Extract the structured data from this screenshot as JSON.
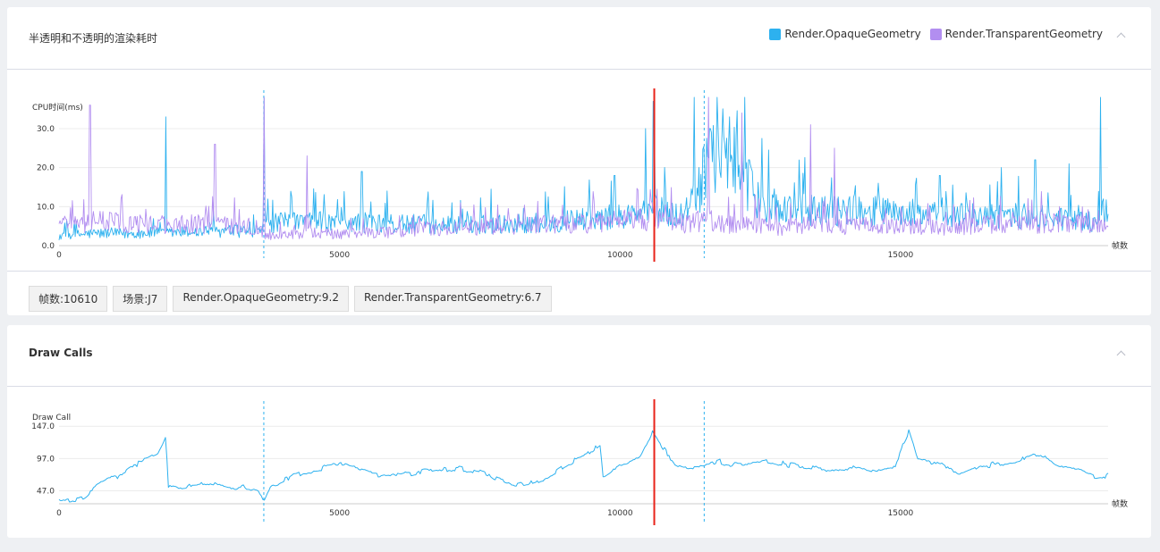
{
  "panel1": {
    "title": "半透明和不透明的渲染耗时",
    "legend": [
      {
        "label": "Render.OpaqueGeometry",
        "color": "#2db1ef"
      },
      {
        "label": "Render.TransparentGeometry",
        "color": "#b28ef0"
      }
    ],
    "chips": [
      "帧数:10610",
      "场景:J7",
      "Render.OpaqueGeometry:9.2",
      "Render.TransparentGeometry:6.7"
    ]
  },
  "panel2": {
    "title": "Draw Calls"
  },
  "chart_data": [
    {
      "type": "line",
      "ylabel": "CPU时间(ms)",
      "xlabel": "帧数",
      "xlim": [
        0,
        18700
      ],
      "ylim": [
        0,
        38
      ],
      "yticks": [
        0,
        10,
        20,
        30
      ],
      "ytick_labels": [
        "0.0",
        "10.0",
        "20.0",
        "30.0"
      ],
      "xticks": [
        0,
        5000,
        10000,
        15000
      ],
      "grid": true,
      "legend_position": "top-right",
      "markers": [
        {
          "x": 10610,
          "kind": "cursor",
          "color": "#e8231a"
        },
        {
          "x": 3650,
          "kind": "scene-boundary",
          "color": "#2db1ef"
        },
        {
          "x": 11500,
          "kind": "scene-boundary",
          "color": "#2db1ef"
        }
      ],
      "series": [
        {
          "name": "Render.OpaqueGeometry",
          "color": "#2db1ef",
          "points": [
            [
              0,
              2.5
            ],
            [
              300,
              2.8
            ],
            [
              600,
              3.1
            ],
            [
              900,
              3.2
            ],
            [
              1200,
              3.0
            ],
            [
              1500,
              3.3
            ],
            [
              1900,
              3.2
            ],
            [
              2300,
              3.5
            ],
            [
              2700,
              3.6
            ],
            [
              3100,
              3.7
            ],
            [
              3500,
              3.8
            ],
            [
              3700,
              5.5
            ],
            [
              4100,
              6.0
            ],
            [
              4500,
              6.2
            ],
            [
              5000,
              5.8
            ],
            [
              5500,
              5.9
            ],
            [
              6000,
              5.5
            ],
            [
              6500,
              5.6
            ],
            [
              7000,
              5.2
            ],
            [
              7500,
              5.4
            ],
            [
              8000,
              5.6
            ],
            [
              8500,
              5.8
            ],
            [
              9000,
              6.2
            ],
            [
              9500,
              7.0
            ],
            [
              9900,
              7.3
            ],
            [
              10300,
              8.0
            ],
            [
              10600,
              9.2
            ],
            [
              10900,
              8.2
            ],
            [
              11200,
              7.6
            ],
            [
              11500,
              18.0
            ],
            [
              11800,
              25.0
            ],
            [
              12100,
              21.0
            ],
            [
              12400,
              12.0
            ],
            [
              12800,
              9.8
            ],
            [
              13200,
              9.2
            ],
            [
              13700,
              9.0
            ],
            [
              14200,
              9.2
            ],
            [
              14700,
              8.6
            ],
            [
              15200,
              8.4
            ],
            [
              15700,
              7.6
            ],
            [
              16200,
              7.8
            ],
            [
              16700,
              7.2
            ],
            [
              17200,
              7.8
            ],
            [
              17700,
              6.9
            ],
            [
              18200,
              6.2
            ],
            [
              18700,
              5.8
            ]
          ],
          "spikes": [
            [
              1900,
              33.0
            ],
            [
              3650,
              38.0
            ],
            [
              4150,
              12.5
            ],
            [
              5400,
              19.0
            ],
            [
              5850,
              14.0
            ],
            [
              7000,
              11.0
            ],
            [
              7700,
              14.5
            ],
            [
              9900,
              18.0
            ],
            [
              10450,
              30.0
            ],
            [
              10600,
              37.0
            ],
            [
              11320,
              38.0
            ],
            [
              11600,
              30.0
            ],
            [
              11950,
              33.0
            ],
            [
              12300,
              22.0
            ],
            [
              14600,
              16.0
            ],
            [
              15700,
              18.0
            ],
            [
              16800,
              20.0
            ],
            [
              17400,
              22.0
            ],
            [
              18000,
              21.0
            ],
            [
              18560,
              40.0
            ]
          ]
        },
        {
          "name": "Render.TransparentGeometry",
          "color": "#b28ef0",
          "points": [
            [
              0,
              5.0
            ],
            [
              300,
              5.6
            ],
            [
              600,
              6.3
            ],
            [
              900,
              6.1
            ],
            [
              1200,
              5.8
            ],
            [
              1500,
              5.6
            ],
            [
              1900,
              5.4
            ],
            [
              2300,
              5.5
            ],
            [
              2700,
              5.4
            ],
            [
              3100,
              5.0
            ],
            [
              3500,
              5.0
            ],
            [
              3700,
              2.4
            ],
            [
              4100,
              2.8
            ],
            [
              4500,
              3.5
            ],
            [
              5000,
              2.9
            ],
            [
              5500,
              3.3
            ],
            [
              6000,
              3.6
            ],
            [
              6500,
              4.3
            ],
            [
              7000,
              4.6
            ],
            [
              7500,
              4.8
            ],
            [
              8000,
              4.9
            ],
            [
              8500,
              5.3
            ],
            [
              9000,
              5.6
            ],
            [
              9500,
              5.6
            ],
            [
              9900,
              6.2
            ],
            [
              10300,
              6.5
            ],
            [
              10600,
              6.7
            ],
            [
              10900,
              6.0
            ],
            [
              11200,
              5.6
            ],
            [
              11500,
              6.5
            ],
            [
              11800,
              5.8
            ],
            [
              12100,
              5.2
            ],
            [
              12400,
              5.4
            ],
            [
              12800,
              4.6
            ],
            [
              13200,
              5.0
            ],
            [
              13700,
              5.4
            ],
            [
              14200,
              4.8
            ],
            [
              14700,
              5.4
            ],
            [
              15200,
              5.0
            ],
            [
              15700,
              4.6
            ],
            [
              16200,
              5.0
            ],
            [
              16700,
              5.6
            ],
            [
              17200,
              5.2
            ],
            [
              17700,
              6.0
            ],
            [
              18200,
              5.6
            ],
            [
              18700,
              4.6
            ]
          ],
          "spikes": [
            [
              550,
              36.0
            ],
            [
              2780,
              26.0
            ],
            [
              3650,
              38.0
            ],
            [
              4420,
              23.0
            ],
            [
              11580,
              40.0
            ],
            [
              12170,
              34.0
            ],
            [
              13400,
              31.0
            ],
            [
              13820,
              25.0
            ]
          ]
        }
      ]
    },
    {
      "type": "line",
      "ylabel": "Draw Call",
      "xlabel": "帧数",
      "xlim": [
        0,
        18700
      ],
      "ylim": [
        27,
        175
      ],
      "yticks": [
        47,
        97,
        147
      ],
      "ytick_labels": [
        "47.0",
        "97.0",
        "147.0"
      ],
      "xticks": [
        0,
        5000,
        10000,
        15000
      ],
      "grid": true,
      "markers": [
        {
          "x": 10610,
          "kind": "cursor",
          "color": "#e8231a"
        },
        {
          "x": 3650,
          "kind": "scene-boundary",
          "color": "#2db1ef"
        },
        {
          "x": 11500,
          "kind": "scene-boundary",
          "color": "#2db1ef"
        }
      ],
      "series": [
        {
          "name": "Draw Call",
          "color": "#2db1ef",
          "points": [
            [
              0,
              33
            ],
            [
              350,
              33
            ],
            [
              500,
              42
            ],
            [
              800,
              60
            ],
            [
              1100,
              72
            ],
            [
              1400,
              88
            ],
            [
              1650,
              100
            ],
            [
              1800,
              108
            ],
            [
              1900,
              128
            ],
            [
              1950,
              55
            ],
            [
              2300,
              54
            ],
            [
              2700,
              60
            ],
            [
              3000,
              55
            ],
            [
              3300,
              52
            ],
            [
              3550,
              48
            ],
            [
              3650,
              32
            ],
            [
              3750,
              50
            ],
            [
              4200,
              72
            ],
            [
              4700,
              82
            ],
            [
              5100,
              92
            ],
            [
              5400,
              78
            ],
            [
              5700,
              70
            ],
            [
              6200,
              72
            ],
            [
              6700,
              80
            ],
            [
              7100,
              83
            ],
            [
              7500,
              75
            ],
            [
              7900,
              62
            ],
            [
              8300,
              55
            ],
            [
              8700,
              68
            ],
            [
              9000,
              85
            ],
            [
              9300,
              100
            ],
            [
              9650,
              120
            ],
            [
              9700,
              65
            ],
            [
              10000,
              88
            ],
            [
              10350,
              100
            ],
            [
              10600,
              140
            ],
            [
              10800,
              110
            ],
            [
              11000,
              88
            ],
            [
              11400,
              84
            ],
            [
              11800,
              92
            ],
            [
              12200,
              86
            ],
            [
              12600,
              94
            ],
            [
              13000,
              87
            ],
            [
              13400,
              84
            ],
            [
              13800,
              80
            ],
            [
              14200,
              82
            ],
            [
              14600,
              80
            ],
            [
              14900,
              85
            ],
            [
              15150,
              140
            ],
            [
              15300,
              95
            ],
            [
              15700,
              88
            ],
            [
              16100,
              72
            ],
            [
              16400,
              84
            ],
            [
              16700,
              88
            ],
            [
              17100,
              96
            ],
            [
              17500,
              106
            ],
            [
              17800,
              84
            ],
            [
              18200,
              78
            ],
            [
              18500,
              66
            ],
            [
              18700,
              70
            ]
          ]
        }
      ]
    }
  ]
}
